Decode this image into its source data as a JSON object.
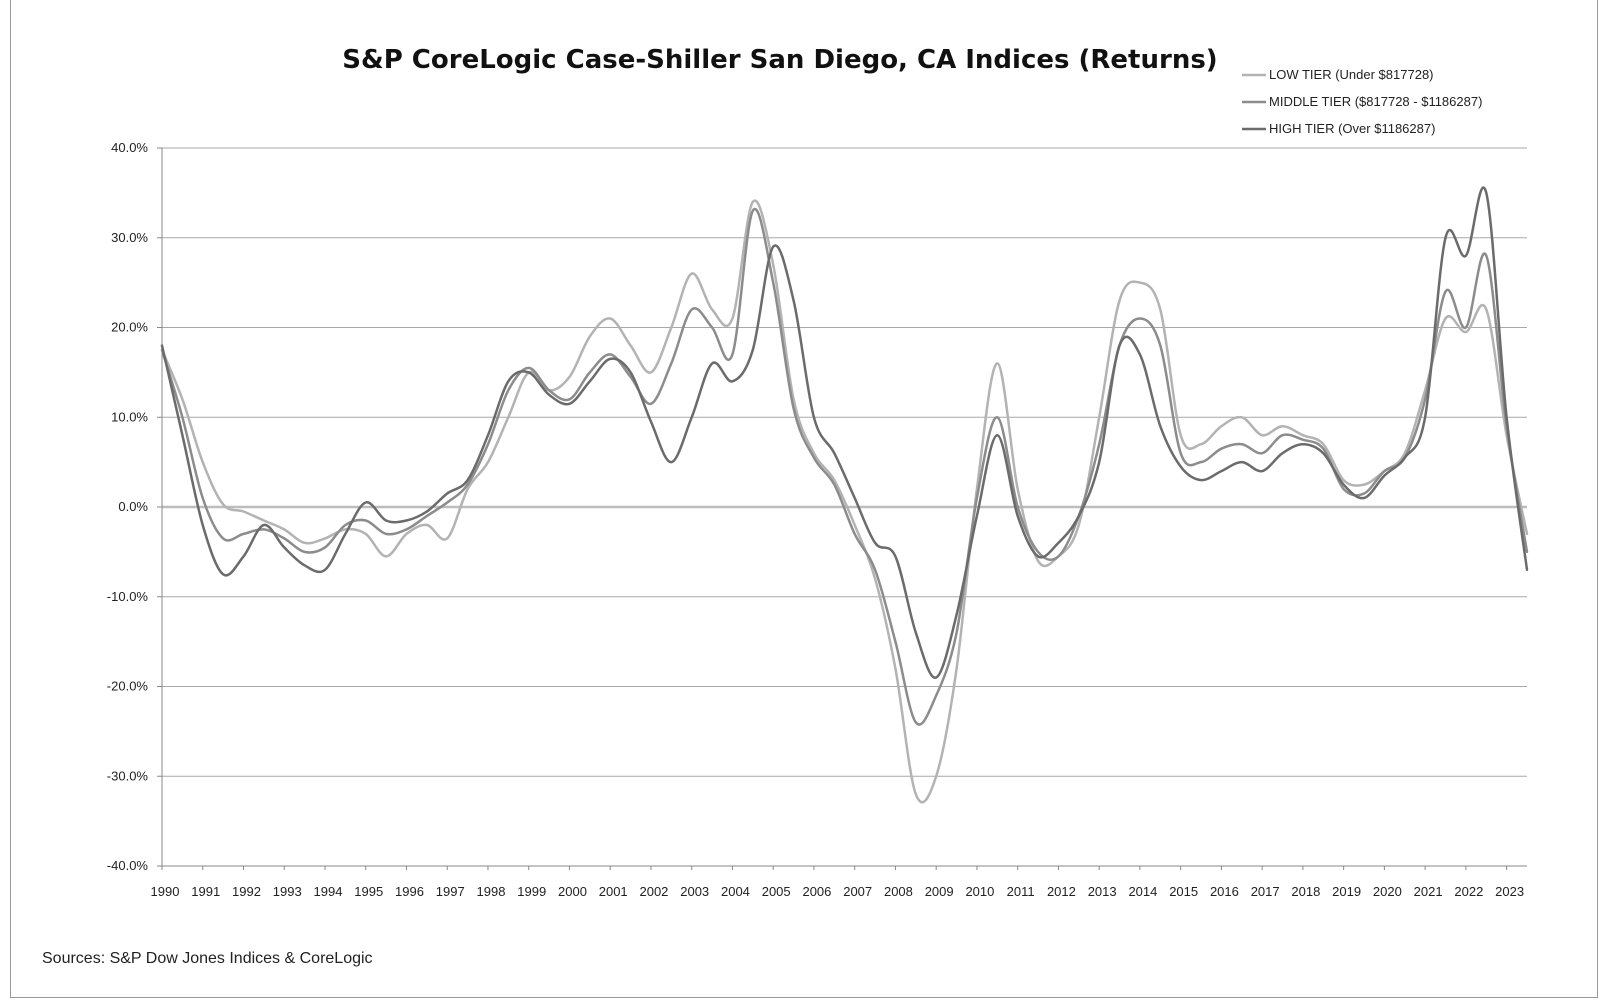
{
  "chart_data": {
    "type": "line",
    "title": "S&P CoreLogic Case-Shiller San Diego, CA Indices (Returns)",
    "source_note": "Sources: S&P Dow Jones Indices & CoreLogic",
    "xlabel": "",
    "ylabel": "",
    "x_ticks": [
      "1990",
      "1991",
      "1992",
      "1993",
      "1994",
      "1995",
      "1996",
      "1997",
      "1998",
      "1999",
      "2000",
      "2001",
      "2002",
      "2003",
      "2004",
      "2005",
      "2006",
      "2007",
      "2008",
      "2009",
      "2010",
      "2011",
      "2012",
      "2013",
      "2014",
      "2015",
      "2016",
      "2017",
      "2018",
      "2019",
      "2020",
      "2021",
      "2022",
      "2023"
    ],
    "xlim": [
      1990.0,
      2023.5
    ],
    "y_ticks": [
      "40.0%",
      "30.0%",
      "20.0%",
      "10.0%",
      "0.0%",
      "-10.0%",
      "-20.0%",
      "-30.0%",
      "-40.0%"
    ],
    "ylim": [
      -40,
      40
    ],
    "y_unit": "%",
    "grid": "horizontal",
    "legend_position": "top-right",
    "series": [
      {
        "name": "LOW TIER (Under $817728)",
        "color": "#b3b3b3",
        "x": [
          1990.0,
          1990.5,
          1991.0,
          1991.5,
          1992.0,
          1992.5,
          1993.0,
          1993.5,
          1994.0,
          1994.5,
          1995.0,
          1995.5,
          1996.0,
          1996.5,
          1997.0,
          1997.5,
          1998.0,
          1998.5,
          1999.0,
          1999.5,
          2000.0,
          2000.5,
          2001.0,
          2001.5,
          2002.0,
          2002.5,
          2003.0,
          2003.5,
          2004.0,
          2004.5,
          2005.0,
          2005.5,
          2006.0,
          2006.5,
          2007.0,
          2007.5,
          2008.0,
          2008.5,
          2009.0,
          2009.5,
          2010.0,
          2010.5,
          2011.0,
          2011.5,
          2012.0,
          2012.5,
          2013.0,
          2013.5,
          2014.0,
          2014.5,
          2015.0,
          2015.5,
          2016.0,
          2016.5,
          2017.0,
          2017.5,
          2018.0,
          2018.5,
          2019.0,
          2019.5,
          2020.0,
          2020.5,
          2021.0,
          2021.5,
          2022.0,
          2022.5,
          2023.0,
          2023.5
        ],
        "values": [
          17.5,
          12.0,
          5.0,
          0.3,
          -0.5,
          -1.5,
          -2.5,
          -4.0,
          -3.5,
          -2.5,
          -3.0,
          -5.5,
          -3.0,
          -2.0,
          -3.5,
          2.0,
          5.0,
          10.0,
          15.0,
          13.0,
          14.5,
          19.0,
          21.0,
          18.0,
          15.0,
          20.0,
          26.0,
          22.0,
          21.0,
          34.0,
          27.0,
          12.0,
          6.0,
          3.0,
          -2.0,
          -8.0,
          -18.0,
          -32.0,
          -30.0,
          -18.0,
          2.0,
          16.0,
          2.0,
          -6.0,
          -5.5,
          -2.0,
          10.0,
          23.0,
          25.0,
          22.0,
          8.0,
          7.0,
          9.0,
          10.0,
          8.0,
          9.0,
          8.0,
          7.0,
          3.0,
          2.5,
          4.0,
          6.0,
          13.0,
          21.0,
          19.5,
          22.0,
          8.0,
          -3.0
        ]
      },
      {
        "name": "MIDDLE TIER ($817728 - $1186287)",
        "color": "#8c8c8c",
        "x": [
          1990.0,
          1990.5,
          1991.0,
          1991.5,
          1992.0,
          1992.5,
          1993.0,
          1993.5,
          1994.0,
          1994.5,
          1995.0,
          1995.5,
          1996.0,
          1996.5,
          1997.0,
          1997.5,
          1998.0,
          1998.5,
          1999.0,
          1999.5,
          2000.0,
          2000.5,
          2001.0,
          2001.5,
          2002.0,
          2002.5,
          2003.0,
          2003.5,
          2004.0,
          2004.5,
          2005.0,
          2005.5,
          2006.0,
          2006.5,
          2007.0,
          2007.5,
          2008.0,
          2008.5,
          2009.0,
          2009.5,
          2010.0,
          2010.5,
          2011.0,
          2011.5,
          2012.0,
          2012.5,
          2013.0,
          2013.5,
          2014.0,
          2014.5,
          2015.0,
          2015.5,
          2016.0,
          2016.5,
          2017.0,
          2017.5,
          2018.0,
          2018.5,
          2019.0,
          2019.5,
          2020.0,
          2020.5,
          2021.0,
          2021.5,
          2022.0,
          2022.5,
          2023.0,
          2023.5
        ],
        "values": [
          17.5,
          10.0,
          1.0,
          -3.5,
          -3.0,
          -2.5,
          -3.5,
          -5.0,
          -4.5,
          -2.0,
          -1.5,
          -3.0,
          -2.5,
          -1.0,
          0.5,
          2.5,
          7.0,
          13.0,
          15.5,
          13.0,
          12.0,
          15.0,
          17.0,
          14.5,
          11.5,
          16.0,
          22.0,
          20.0,
          17.0,
          33.0,
          25.0,
          11.0,
          5.5,
          2.5,
          -3.0,
          -7.0,
          -15.0,
          -24.0,
          -21.0,
          -14.0,
          1.0,
          10.0,
          0.0,
          -5.0,
          -5.5,
          -1.0,
          7.0,
          18.0,
          21.0,
          18.0,
          6.0,
          5.0,
          6.5,
          7.0,
          6.0,
          8.0,
          7.5,
          6.5,
          2.0,
          1.5,
          4.0,
          5.5,
          12.0,
          24.0,
          20.0,
          28.0,
          9.0,
          -5.0
        ]
      },
      {
        "name": "HIGH TIER (Over $1186287)",
        "color": "#6b6b6b",
        "x": [
          1990.0,
          1990.5,
          1991.0,
          1991.5,
          1992.0,
          1992.5,
          1993.0,
          1993.5,
          1994.0,
          1994.5,
          1995.0,
          1995.5,
          1996.0,
          1996.5,
          1997.0,
          1997.5,
          1998.0,
          1998.5,
          1999.0,
          1999.5,
          2000.0,
          2000.5,
          2001.0,
          2001.5,
          2002.0,
          2002.5,
          2003.0,
          2003.5,
          2004.0,
          2004.5,
          2005.0,
          2005.5,
          2006.0,
          2006.5,
          2007.0,
          2007.5,
          2008.0,
          2008.5,
          2009.0,
          2009.5,
          2010.0,
          2010.5,
          2011.0,
          2011.5,
          2012.0,
          2012.5,
          2013.0,
          2013.5,
          2014.0,
          2014.5,
          2015.0,
          2015.5,
          2016.0,
          2016.5,
          2017.0,
          2017.5,
          2018.0,
          2018.5,
          2019.0,
          2019.5,
          2020.0,
          2020.5,
          2021.0,
          2021.5,
          2022.0,
          2022.5,
          2023.0,
          2023.5
        ],
        "values": [
          18.0,
          8.0,
          -2.0,
          -7.5,
          -5.5,
          -2.0,
          -4.5,
          -6.5,
          -7.0,
          -3.0,
          0.5,
          -1.5,
          -1.5,
          -0.5,
          1.5,
          3.0,
          8.0,
          14.0,
          15.0,
          12.5,
          11.5,
          14.0,
          16.5,
          15.0,
          9.5,
          5.0,
          10.0,
          16.0,
          14.0,
          17.5,
          29.0,
          23.0,
          10.0,
          6.0,
          1.0,
          -4.0,
          -5.5,
          -14.0,
          -19.0,
          -12.0,
          -1.0,
          8.0,
          -1.0,
          -5.5,
          -4.0,
          -1.0,
          5.0,
          18.0,
          17.0,
          9.0,
          4.5,
          3.0,
          4.0,
          5.0,
          4.0,
          6.0,
          7.0,
          6.0,
          2.5,
          1.0,
          3.5,
          5.5,
          10.0,
          30.0,
          28.0,
          35.0,
          10.0,
          -7.0
        ]
      }
    ]
  }
}
